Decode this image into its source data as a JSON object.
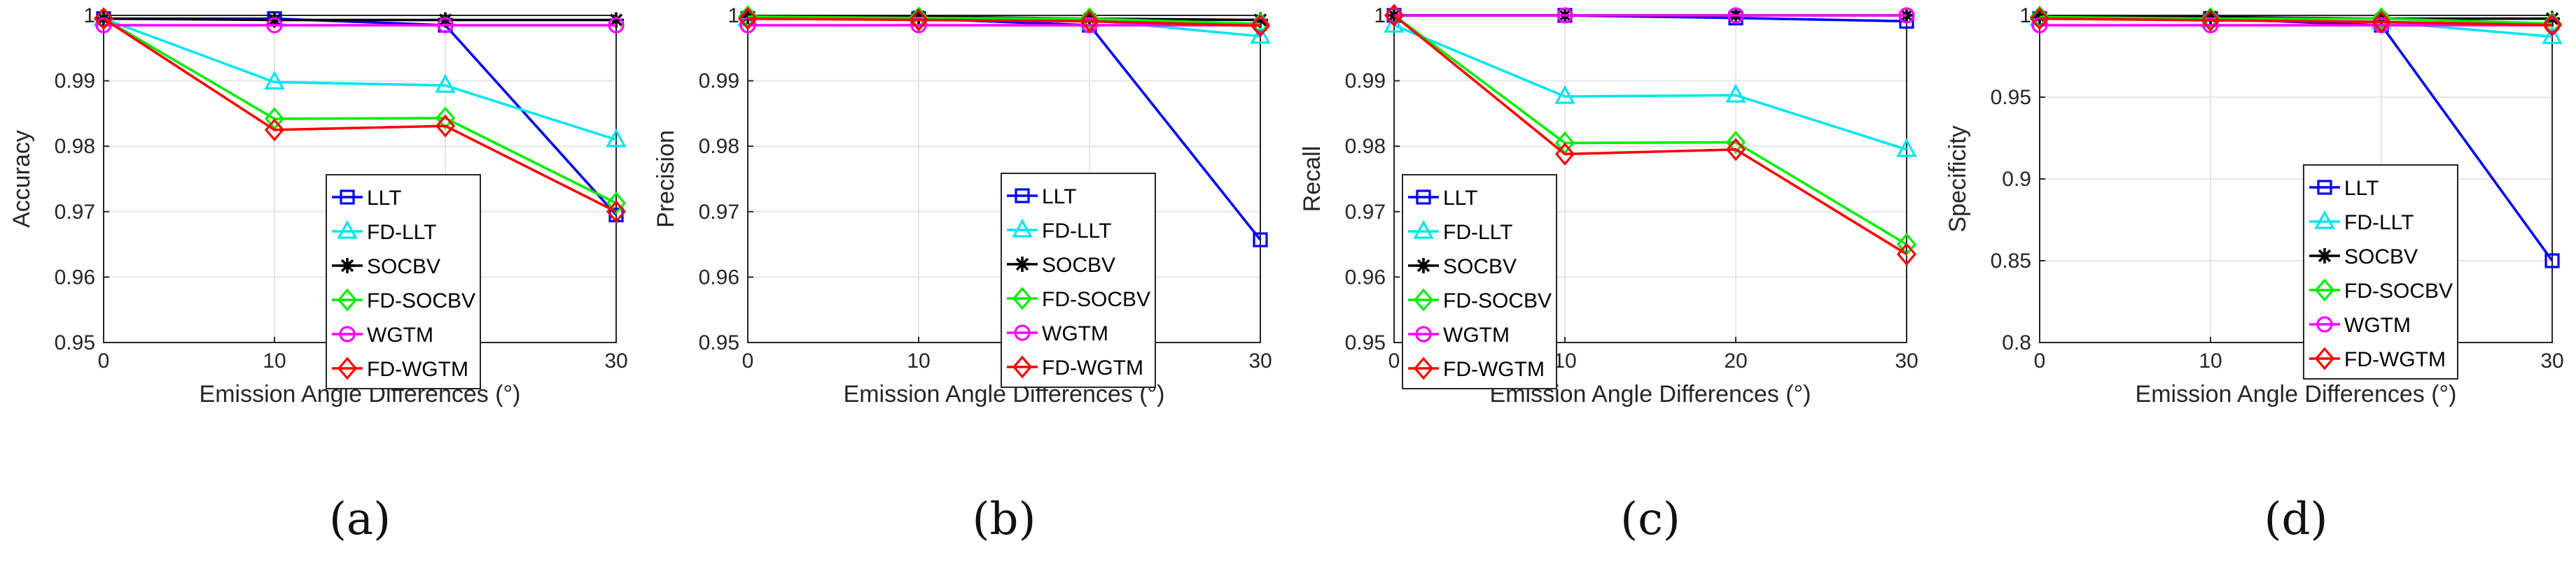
{
  "colors": {
    "LLT": "#0000ff",
    "FD-LLT": "#00e5ee",
    "SOCBV": "#000000",
    "FD-SOCBV": "#00ee00",
    "WGTM": "#ff00ff",
    "FD-WGTM": "#ff0000",
    "grid": "#e6e6e6",
    "axis": "#262626"
  },
  "markers": {
    "LLT": "square",
    "FD-LLT": "triangle",
    "SOCBV": "asterisk",
    "FD-SOCBV": "diamond",
    "WGTM": "circle",
    "FD-WGTM": "diamond"
  },
  "chart_data": [
    {
      "type": "line",
      "panel": "a",
      "panel_label": "(a)",
      "xlabel": "Emission Angle Differences (°)",
      "ylabel": "Accuracy",
      "x": [
        0,
        10,
        20,
        30
      ],
      "xlim": [
        0,
        30
      ],
      "ylim": [
        0.95,
        1
      ],
      "xticks": [
        "0",
        "10",
        "20",
        "30"
      ],
      "yticks": [
        "0.95",
        "0.96",
        "0.97",
        "0.98",
        "0.99",
        "1"
      ],
      "ytick_values": [
        0.95,
        0.96,
        0.97,
        0.98,
        0.99,
        1
      ],
      "grid": true,
      "legend": "lower-right",
      "series": [
        {
          "name": "LLT",
          "values": [
            0.9995,
            0.9995,
            0.9985,
            0.9695
          ]
        },
        {
          "name": "FD-LLT",
          "values": [
            0.9995,
            0.9898,
            0.9893,
            0.981
          ]
        },
        {
          "name": "SOCBV",
          "values": [
            0.9995,
            0.9993,
            0.9993,
            0.9993
          ]
        },
        {
          "name": "FD-SOCBV",
          "values": [
            0.9995,
            0.9842,
            0.9843,
            0.9713
          ]
        },
        {
          "name": "WGTM",
          "values": [
            0.9985,
            0.9985,
            0.9985,
            0.9985
          ]
        },
        {
          "name": "FD-WGTM",
          "values": [
            0.9995,
            0.9825,
            0.9831,
            0.97
          ]
        }
      ]
    },
    {
      "type": "line",
      "panel": "b",
      "panel_label": "(b)",
      "xlabel": "Emission Angle Differences (°)",
      "ylabel": "Precision",
      "x": [
        0,
        10,
        20,
        30
      ],
      "xlim": [
        0,
        30
      ],
      "ylim": [
        0.95,
        1
      ],
      "xticks": [
        "0",
        "10",
        "20",
        "30"
      ],
      "yticks": [
        "0.95",
        "0.96",
        "0.97",
        "0.98",
        "0.99",
        "1"
      ],
      "ytick_values": [
        0.95,
        0.96,
        0.97,
        0.98,
        0.99,
        1
      ],
      "grid": true,
      "legend": "lower-right",
      "series": [
        {
          "name": "LLT",
          "values": [
            0.9995,
            0.9995,
            0.9985,
            0.9657
          ]
        },
        {
          "name": "FD-LLT",
          "values": [
            0.9995,
            0.9995,
            0.9993,
            0.9968
          ]
        },
        {
          "name": "SOCBV",
          "values": [
            0.9998,
            0.9998,
            0.9995,
            0.9993
          ]
        },
        {
          "name": "FD-SOCBV",
          "values": [
            0.9998,
            0.9996,
            0.9995,
            0.9987
          ]
        },
        {
          "name": "WGTM",
          "values": [
            0.9985,
            0.9985,
            0.9985,
            0.9985
          ]
        },
        {
          "name": "FD-WGTM",
          "values": [
            0.9995,
            0.9993,
            0.9991,
            0.9984
          ]
        }
      ]
    },
    {
      "type": "line",
      "panel": "c",
      "panel_label": "(c)",
      "xlabel": "Emission Angle Differences (°)",
      "ylabel": "Recall",
      "x": [
        0,
        10,
        20,
        30
      ],
      "xlim": [
        0,
        30
      ],
      "ylim": [
        0.95,
        1
      ],
      "xticks": [
        "0",
        "10",
        "20",
        "30"
      ],
      "yticks": [
        "0.95",
        "0.96",
        "0.97",
        "0.98",
        "0.99",
        "1"
      ],
      "ytick_values": [
        0.95,
        0.96,
        0.97,
        0.98,
        0.99,
        1
      ],
      "grid": true,
      "legend": "lower-left",
      "series": [
        {
          "name": "LLT",
          "values": [
            1.0,
            1.0,
            0.9996,
            0.9991
          ]
        },
        {
          "name": "FD-LLT",
          "values": [
            0.9985,
            0.9876,
            0.9878,
            0.9795
          ]
        },
        {
          "name": "SOCBV",
          "values": [
            1.0,
            1.0,
            1.0,
            1.0
          ]
        },
        {
          "name": "FD-SOCBV",
          "values": [
            1.0,
            0.9805,
            0.9806,
            0.965
          ]
        },
        {
          "name": "WGTM",
          "values": [
            1.0,
            1.0,
            1.0,
            1.0
          ]
        },
        {
          "name": "FD-WGTM",
          "values": [
            1.0,
            0.9788,
            0.9795,
            0.9635
          ]
        }
      ]
    },
    {
      "type": "line",
      "panel": "d",
      "panel_label": "(d)",
      "xlabel": "Emission Angle Differences (°)",
      "ylabel": "Specificity",
      "x": [
        0,
        10,
        20,
        30
      ],
      "xlim": [
        0,
        30
      ],
      "ylim": [
        0.8,
        1
      ],
      "xticks": [
        "0",
        "10",
        "20",
        "30"
      ],
      "yticks": [
        "0.8",
        "0.85",
        "0.9",
        "0.95",
        "1"
      ],
      "ytick_values": [
        0.8,
        0.85,
        0.9,
        0.95,
        1
      ],
      "grid": true,
      "legend": "lower-right",
      "series": [
        {
          "name": "LLT",
          "values": [
            0.998,
            0.998,
            0.994,
            0.85
          ]
        },
        {
          "name": "FD-LLT",
          "values": [
            0.998,
            0.997,
            0.996,
            0.987
          ]
        },
        {
          "name": "SOCBV",
          "values": [
            0.999,
            0.999,
            0.998,
            0.998
          ]
        },
        {
          "name": "FD-SOCBV",
          "values": [
            0.999,
            0.998,
            0.998,
            0.995
          ]
        },
        {
          "name": "WGTM",
          "values": [
            0.994,
            0.994,
            0.994,
            0.994
          ]
        },
        {
          "name": "FD-WGTM",
          "values": [
            0.998,
            0.997,
            0.996,
            0.994
          ]
        }
      ]
    }
  ]
}
